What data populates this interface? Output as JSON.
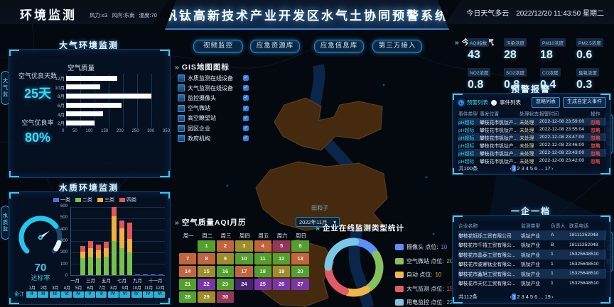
{
  "icons": {
    "chevrons": "»",
    "caret": "▾",
    "check": "✓",
    "prev": "‹",
    "next": "›"
  },
  "header": {
    "app_title": "环境监测",
    "wind": "风力:≤3",
    "wind_dir": "风向:东南",
    "temp": "温度:70",
    "main_title": "钒钛高新技术产业开发区水气土协同预警系统",
    "weather_today": "今日天气多云",
    "datetime": "2022/12/20 11:43:50 星期二"
  },
  "edge_tabs": {
    "left_top": "大气监测",
    "left_bottom": "水质监测",
    "right_top": "预警报警",
    "right_bottom": "一企一档"
  },
  "air_panel": {
    "title": "大气环境监测",
    "good_days_label": "空气优良天数",
    "good_days_value": "25天",
    "good_rate_label": "空气优良率",
    "good_rate_value": "80%",
    "chart_title": "空气质量"
  },
  "water_panel": {
    "title": "水质环境监测",
    "gauge_value": "70",
    "gauge_label": "达标率",
    "river_label": "金江",
    "months": [
      "1月",
      "2月",
      "3月",
      "4月",
      "5月",
      "6月",
      "7月",
      "8月",
      "9月",
      "10月",
      "11月",
      "12月"
    ],
    "grades": [
      "II",
      "III",
      "III",
      "VI",
      "IV",
      "V",
      "II",
      "IV",
      "VI",
      "IV",
      "IV",
      "VI"
    ]
  },
  "map": {
    "buttons": [
      "视频监控",
      "应急资源库",
      "应急信息库",
      "第三方接入"
    ],
    "gis_title": "GIS地图图标",
    "layers": [
      "水质监测在线设备",
      "大气监测在线设备",
      "监控摄像头",
      "空气微站",
      "高空瞭望站",
      "园区企业",
      "政府机构"
    ],
    "area_label": "田和子"
  },
  "today_air": {
    "title": "今日空气",
    "stats": [
      {
        "label": "AQI指数",
        "value": "43"
      },
      {
        "label": "污染浓度",
        "value": "28"
      },
      {
        "label": "PM10浓度",
        "value": "18"
      },
      {
        "label": "PM2.5浓度",
        "value": "0.6"
      },
      {
        "label": "NO2浓度",
        "value": "0.8"
      },
      {
        "label": "SO2浓度",
        "value": "0.8"
      },
      {
        "label": "CO浓度",
        "value": "0.4"
      },
      {
        "label": "臭氧浓度",
        "value": "0.3"
      }
    ]
  },
  "alerts": {
    "title": "预警报警",
    "radio_warning": "预警列表",
    "radio_event": "事件列表",
    "btn_ignore": "忽略列表",
    "btn_custom": "生成自定义事件",
    "headers": [
      "事件类型",
      "事发位置",
      "处理状态",
      "报警时间",
      "操作"
    ],
    "rows": [
      {
        "type": "pH超标",
        "location": "攀枝花市钒钛产...",
        "status": "未处理",
        "time": "2022-12-08 23:59:00",
        "action": "忽略"
      },
      {
        "type": "pH超标",
        "location": "攀枝花市钒钛产...",
        "status": "未处理",
        "time": "2022-12-08 23:55:04",
        "action": "忽略"
      },
      {
        "type": "pH超标",
        "location": "攀枝花市钒钛产...",
        "status": "未处理",
        "time": "2022-12-08 23:47:00",
        "action": "忽略"
      },
      {
        "type": "pH超标",
        "location": "攀枝花市钒钛产...",
        "status": "未处理",
        "time": "2022-12-08 23:46:00",
        "action": "忽略"
      },
      {
        "type": "pH超标",
        "location": "攀枝花市钒钛产...",
        "status": "未处理",
        "time": "2022-12-08 23:43:00",
        "action": "忽略"
      },
      {
        "type": "pH超标",
        "location": "攀枝花市钒钛产...",
        "status": "未处理",
        "time": "2022-12-08 23:42:00",
        "action": "忽略"
      }
    ],
    "total": "共100条",
    "pages": [
      "1",
      "2",
      "3",
      "4",
      "5",
      "6",
      "...",
      "17"
    ],
    "active_page": "1"
  },
  "enterprises": {
    "title": "一企一档",
    "headers": [
      "企业名称",
      "监测类型",
      "负责人",
      "联系电话"
    ],
    "rows": [
      {
        "name": "攀枝花钰烁工贸有限公司",
        "type": "钒钛产业",
        "person": "A",
        "phone": "18111252048"
      },
      {
        "name": "攀枝花市千禧工贸有限公...",
        "type": "钒钛产业",
        "person": "B",
        "phone": "18111252048"
      },
      {
        "name": "攀枝花市晶泰工贸有限公...",
        "type": "钒钛产业",
        "person": "1",
        "phone": "15325648510"
      },
      {
        "name": "攀枝花市波睿钛业有限公...",
        "type": "钒钛产业",
        "person": "1",
        "phone": "15325648510"
      },
      {
        "name": "攀枝花市鑫旭工贸有限公...",
        "type": "钒钛产业",
        "person": "1",
        "phone": "15325648510"
      },
      {
        "name": "攀枝花市天亿工贸有限公...",
        "type": "钒钛产业",
        "person": "1",
        "phone": "15325648510"
      }
    ],
    "total": "共112条",
    "pages": [
      "1",
      "2",
      "3",
      "4",
      "5",
      "6",
      "...",
      "19"
    ],
    "active_page": "1"
  },
  "calendar_section": {
    "title": "空气质量AQI月历"
  },
  "donut_section": {
    "title": "企业在线监测类型统计",
    "unit_label": "点位"
  },
  "chart_data": [
    {
      "id": "air_quality_bars",
      "type": "bar",
      "orientation": "horizontal",
      "title": "空气质量",
      "categories": [
        "12月",
        "10月",
        "8月",
        "6月",
        "4月",
        "2月"
      ],
      "values": [
        180,
        120,
        300,
        195,
        130,
        100
      ],
      "xlim": [
        0,
        350
      ],
      "xticks": [
        0,
        50,
        100,
        150,
        200,
        250,
        300,
        350
      ],
      "bar_color": "#ffffff",
      "grid": true
    },
    {
      "id": "water_quality_stacked",
      "type": "bar",
      "stacked": true,
      "title": "水质环境监测",
      "categories": [
        "一月",
        "二月",
        "三月",
        "四月",
        "五月",
        "六月",
        "七月",
        "八月",
        "九月",
        "十月",
        "十一月",
        "十二月"
      ],
      "series": [
        {
          "name": "一类",
          "color": "#4f6fd8",
          "values": [
            0,
            0,
            0,
            0,
            0,
            0,
            0,
            0,
            8,
            8,
            8,
            8
          ]
        },
        {
          "name": "二类",
          "color": "#76c04e",
          "values": [
            0,
            150,
            160,
            150,
            160,
            300,
            240,
            200,
            0,
            0,
            0,
            0
          ]
        },
        {
          "name": "三类",
          "color": "#f2b03c",
          "values": [
            0,
            55,
            80,
            70,
            80,
            220,
            170,
            120,
            0,
            0,
            0,
            0
          ]
        },
        {
          "name": "四类",
          "color": "#e45656",
          "values": [
            0,
            50,
            60,
            50,
            55,
            80,
            70,
            140,
            0,
            0,
            0,
            0
          ]
        }
      ],
      "ylim": [
        0,
        600
      ],
      "yticks": [
        0,
        100,
        200,
        300,
        400,
        500,
        600
      ],
      "xtick_labels": [
        "一月",
        "三月",
        "五月",
        "七月",
        "九月",
        "十一月"
      ],
      "legend_position": "top",
      "grid": true
    },
    {
      "id": "aqi_calendar",
      "type": "heatmap",
      "title": "空气质量AQI月历",
      "month": "2022年11月",
      "weekdays": [
        "周一",
        "周二",
        "周三",
        "周四",
        "周五",
        "周六",
        "周日"
      ],
      "start_col": 1,
      "day_levels": [
        "g",
        "o",
        "y",
        "o",
        "m",
        "g",
        "o",
        "o",
        "y",
        "g",
        "g",
        "g",
        "o",
        "o",
        "y",
        "g",
        "o",
        "g",
        "y",
        "g",
        "g",
        "p",
        "g",
        "d",
        "p",
        "p",
        "p",
        "g",
        "y",
        "m"
      ],
      "palette": {
        "g": "#53a02e",
        "o": "#c0653c",
        "y": "#9d8d2b",
        "p": "#7a35a8",
        "d": "#4a2372",
        "m": "#94365a"
      }
    },
    {
      "id": "monitor_type_donut",
      "type": "pie",
      "title": "企业在线监测类型统计",
      "series": [
        {
          "name": "摄像头",
          "value": 10,
          "color": "#5b8ff9"
        },
        {
          "name": "空气微站",
          "value": 20,
          "color": "#87c05e"
        },
        {
          "name": "自动",
          "value": 10,
          "color": "#f0b64a"
        },
        {
          "name": "大气监测",
          "value": 15,
          "color": "#e15b64"
        },
        {
          "name": "用电监控",
          "value": 22,
          "color": "#79c8e8"
        }
      ]
    },
    {
      "id": "attain_gauge",
      "type": "gauge",
      "value": 70,
      "max": 100,
      "label": "达标率",
      "color": "#22c7ee"
    }
  ]
}
